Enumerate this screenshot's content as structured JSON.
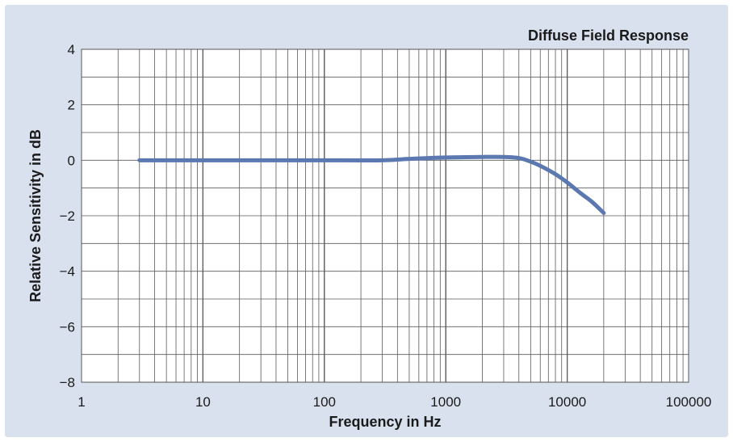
{
  "chart_data": {
    "type": "line",
    "title": "Diffuse Field Response",
    "xlabel": "Frequency in Hz",
    "ylabel": "Relative Sensitivity in dB",
    "x_scale": "log",
    "xlim": [
      1,
      100000
    ],
    "ylim": [
      -8,
      4
    ],
    "x_ticks": [
      1,
      10,
      100,
      1000,
      10000,
      100000
    ],
    "x_tick_labels": [
      "1",
      "10",
      "100",
      "1000",
      "10000",
      "100000"
    ],
    "y_ticks": [
      4,
      2,
      0,
      -2,
      -4,
      -6,
      -8
    ],
    "y_tick_labels": [
      "4",
      "2",
      "0",
      "−2",
      "−4",
      "−6",
      "−8"
    ],
    "grid": true,
    "series": [
      {
        "color": "#5b79b0",
        "x": [
          3,
          10,
          50,
          100,
          300,
          500,
          1000,
          2000,
          3000,
          4000,
          5000,
          6000,
          8000,
          10000,
          13000,
          16000,
          20000
        ],
        "y": [
          0,
          0,
          0,
          0,
          0,
          0.05,
          0.1,
          0.12,
          0.12,
          0.08,
          -0.05,
          -0.2,
          -0.5,
          -0.8,
          -1.2,
          -1.5,
          -1.9
        ]
      }
    ]
  }
}
